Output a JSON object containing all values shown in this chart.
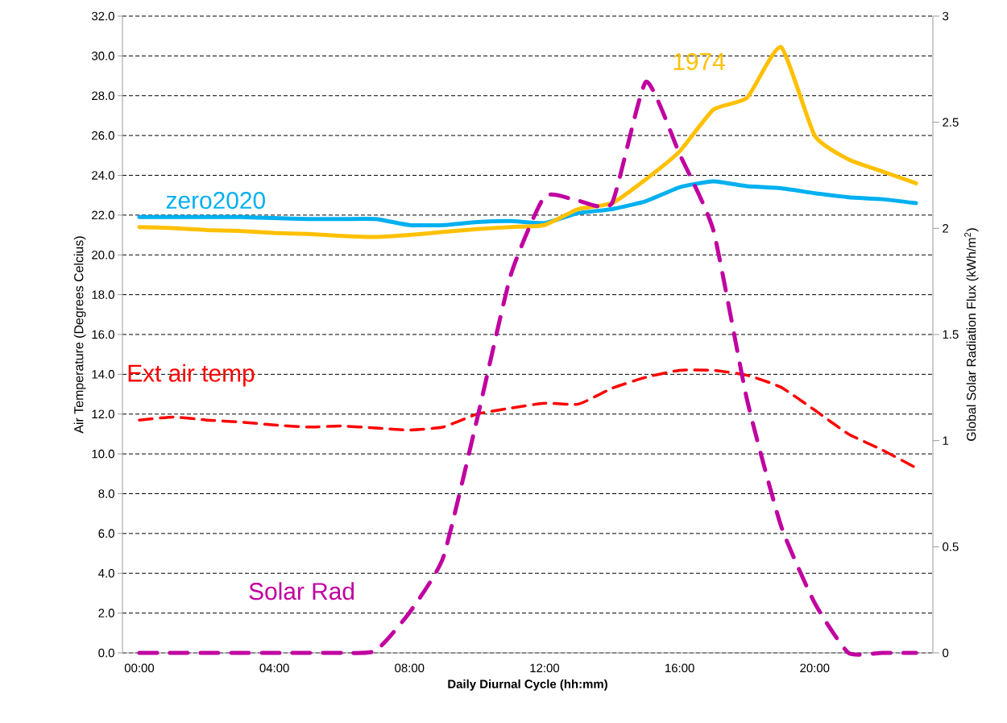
{
  "chart_data": {
    "type": "line",
    "xlabel": "Daily Diurnal Cycle (hh:mm)",
    "ylabel": "Air Temperature (Degrees Celcius)",
    "y2label": "Global Solar Radiation Flux (kWh/m$^{2}$)",
    "categories": [
      "00:00",
      null,
      null,
      null,
      "04:00",
      null,
      null,
      null,
      "08:00",
      null,
      null,
      null,
      "12:00",
      null,
      null,
      null,
      "16:00",
      null,
      null,
      null,
      "20:00",
      null,
      null,
      null
    ],
    "series": [
      {
        "name": "zero2020",
        "color": "#00b0f0",
        "line_style": "solid",
        "values": [
          21.9,
          21.9,
          21.9,
          21.9,
          21.85,
          21.8,
          21.8,
          21.8,
          21.5,
          21.5,
          21.65,
          21.7,
          21.6,
          22.1,
          22.3,
          22.7,
          23.4,
          23.7,
          23.45,
          23.35,
          23.1,
          22.9,
          22.8,
          22.6
        ]
      },
      {
        "name": "1974",
        "color": "#ffc000",
        "line_style": "solid",
        "values": [
          21.4,
          21.35,
          21.25,
          21.2,
          21.1,
          21.05,
          20.95,
          20.9,
          21.0,
          21.15,
          21.3,
          21.4,
          21.5,
          22.3,
          22.6,
          23.8,
          25.2,
          27.3,
          27.9,
          30.45,
          26.0,
          24.8,
          24.2,
          23.6
        ]
      },
      {
        "name": "Ext air temp",
        "color": "#ff0000",
        "line_style": "dashed",
        "values": [
          11.7,
          11.85,
          11.7,
          11.6,
          11.45,
          11.35,
          11.4,
          11.3,
          11.2,
          11.35,
          12.0,
          12.3,
          12.55,
          12.5,
          13.3,
          13.85,
          14.2,
          14.2,
          13.95,
          13.35,
          12.2,
          11.0,
          10.2,
          9.3
        ]
      },
      {
        "name": "Solar Rad",
        "color": "#c000a0",
        "line_style": "dashed",
        "axis": "y2",
        "values": [
          0,
          0,
          0,
          0,
          0,
          0,
          0,
          0.01,
          0.19,
          0.45,
          1.1,
          1.78,
          2.15,
          2.13,
          2.12,
          2.69,
          2.35,
          1.99,
          1.19,
          0.6,
          0.235,
          0,
          0,
          0
        ]
      }
    ],
    "ylim": [
      0,
      32
    ],
    "yticks": [
      {
        "value": 0,
        "label": "0.0"
      },
      {
        "value": 2,
        "label": "2.0"
      },
      {
        "value": 4,
        "label": "4.0"
      },
      {
        "value": 6,
        "label": "6.0"
      },
      {
        "value": 8,
        "label": "8.0"
      },
      {
        "value": 10,
        "label": "10.0"
      },
      {
        "value": 12,
        "label": "12.0"
      },
      {
        "value": 14,
        "label": "14.0"
      },
      {
        "value": 16,
        "label": "16.0"
      },
      {
        "value": 18,
        "label": "18.0"
      },
      {
        "value": 20,
        "label": "20.0"
      },
      {
        "value": 22,
        "label": "22.0"
      },
      {
        "value": 24,
        "label": "24.0"
      },
      {
        "value": 26,
        "label": "26.0"
      },
      {
        "value": 28,
        "label": "28.0"
      },
      {
        "value": 30,
        "label": "30.0"
      },
      {
        "value": 32,
        "label": "32.0"
      }
    ],
    "y2lim": [
      0,
      3
    ],
    "y2ticks": [
      0,
      0.5,
      1,
      1.5,
      2,
      2.5,
      3
    ],
    "grid": "y"
  }
}
